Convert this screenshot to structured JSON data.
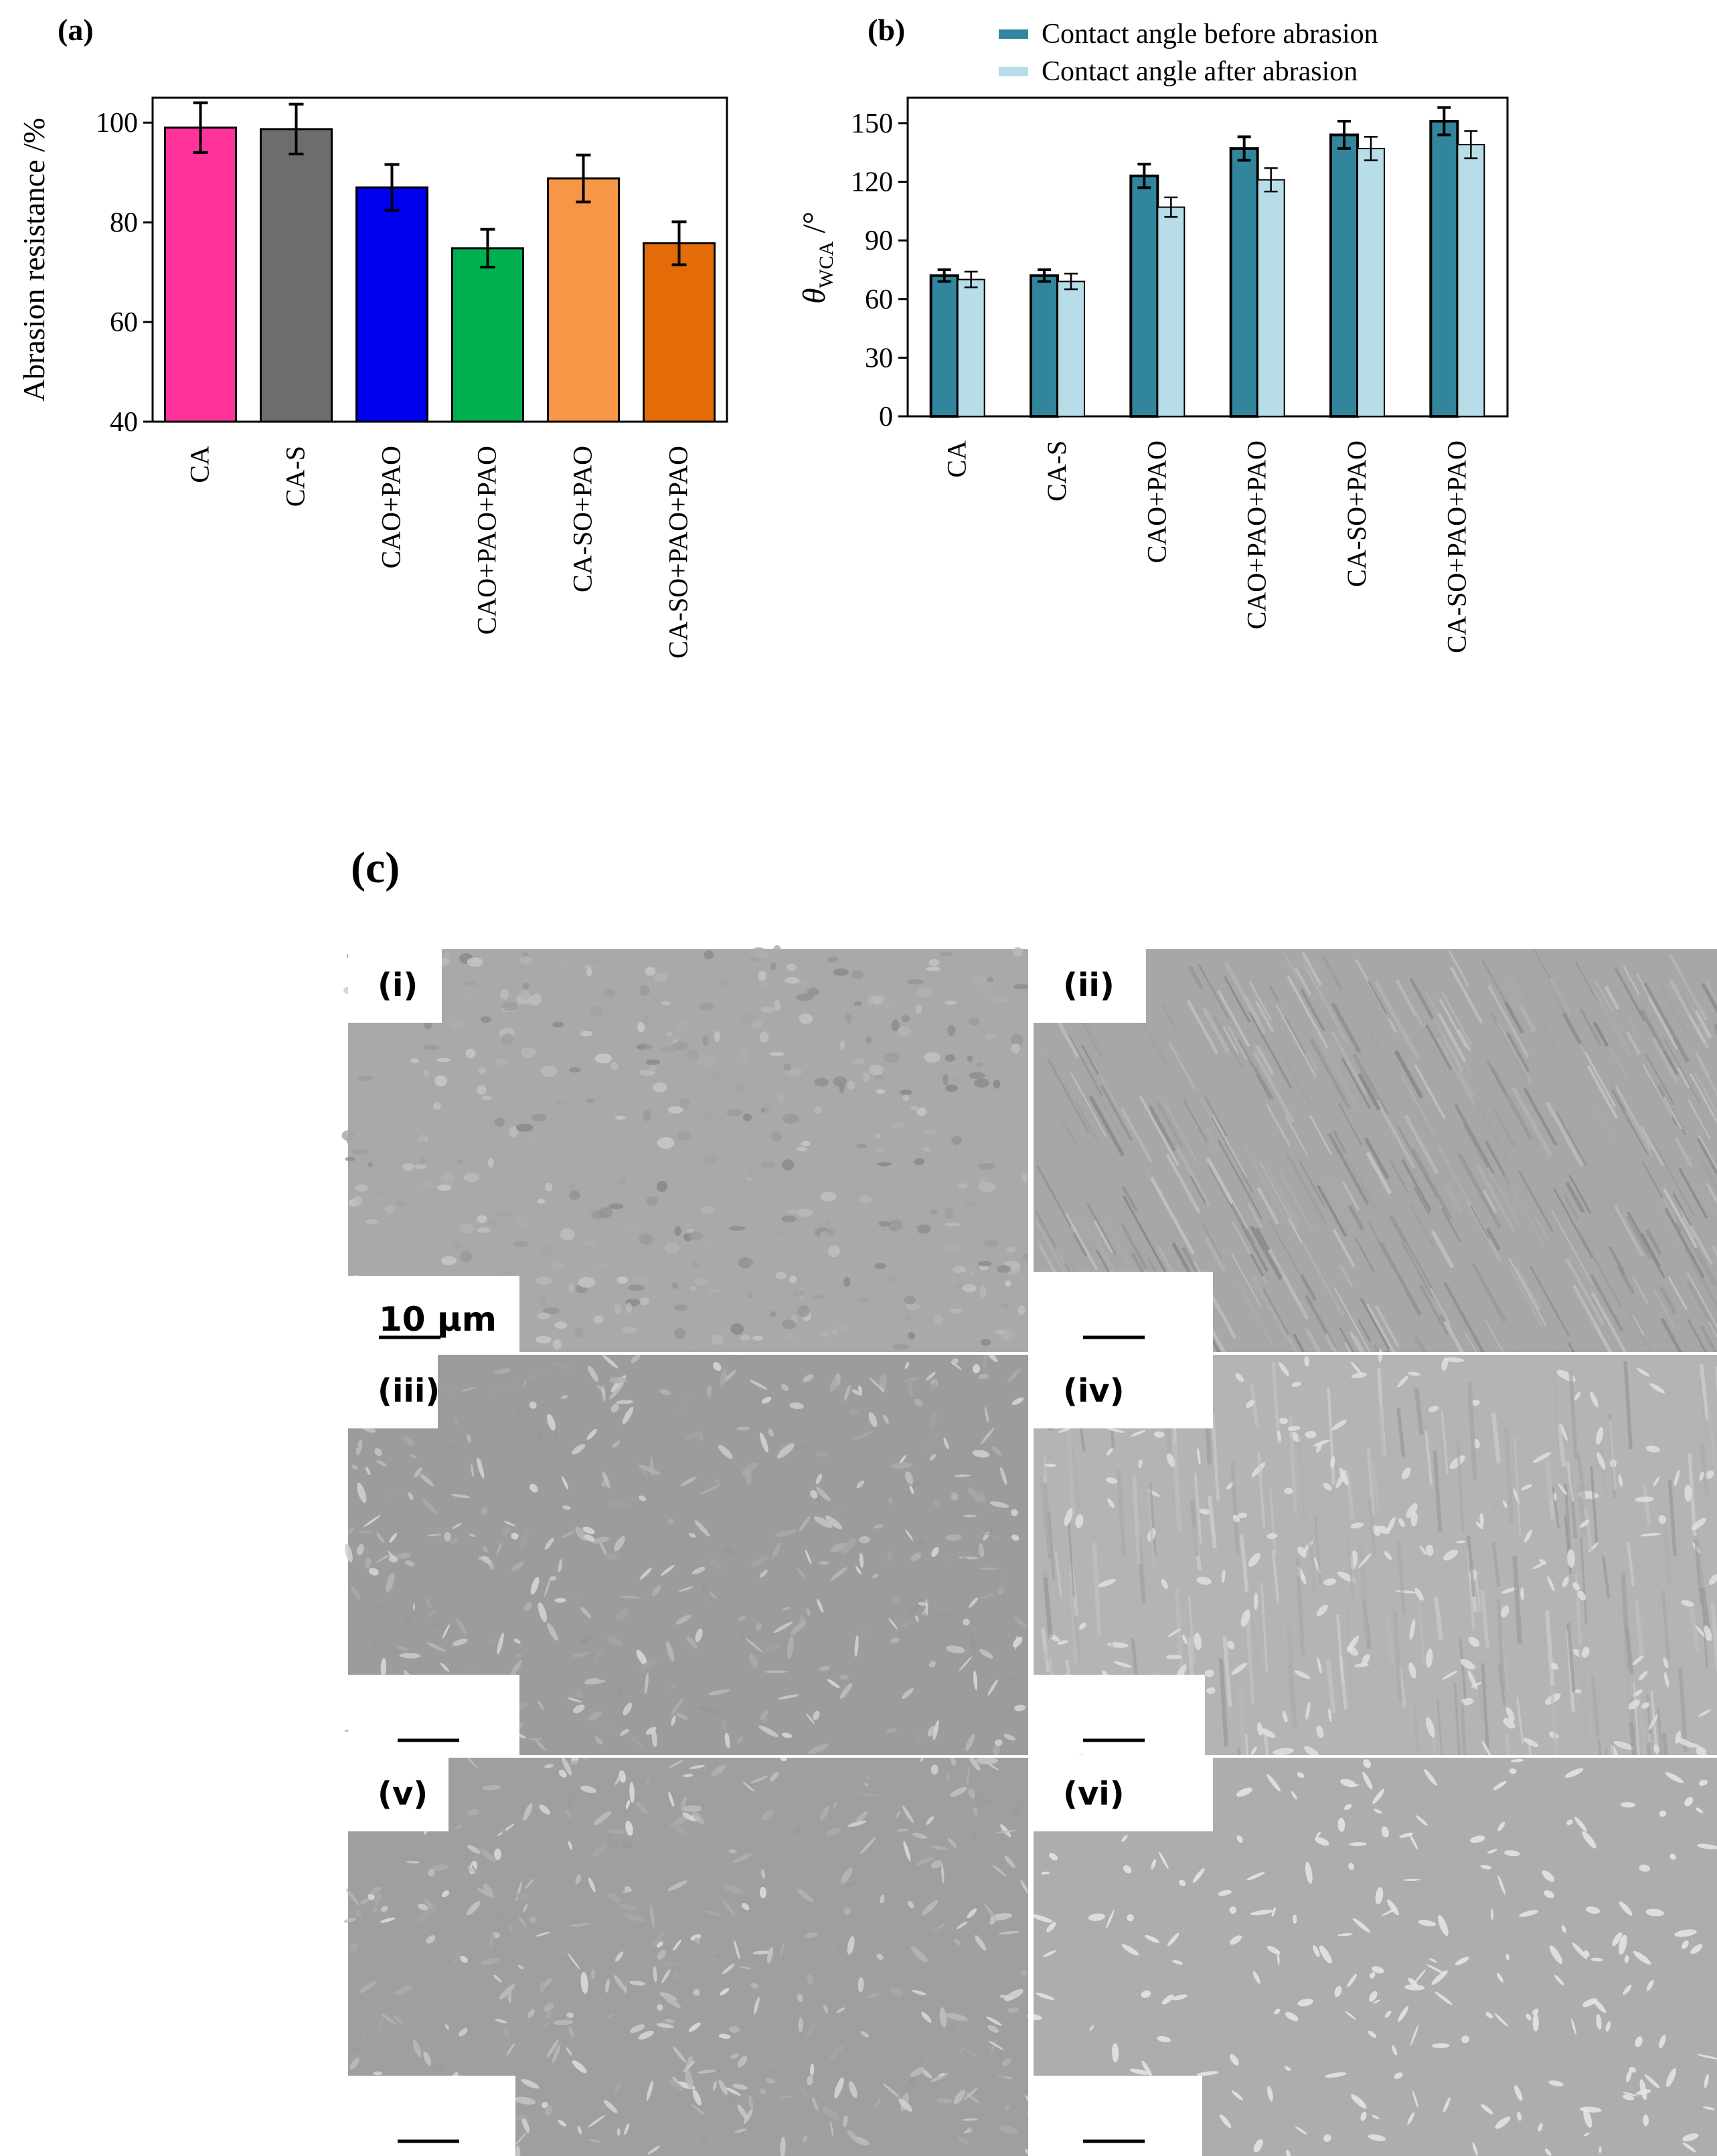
{
  "panel_labels": {
    "a": "(a)",
    "b": "(b)",
    "c": "(c)"
  },
  "chart_data": [
    {
      "type": "bar",
      "panel": "(a)",
      "categories": [
        "CA",
        "CA-S",
        "CAO+PAO",
        "CAO+PAO+PAO",
        "CA-SO+PAO",
        "CA-SO+PAO+PAO"
      ],
      "values": [
        99,
        98.7,
        87,
        74.8,
        88.8,
        75.8
      ],
      "errors": [
        5,
        5,
        4.6,
        3.8,
        4.7,
        4.3
      ],
      "colors": [
        "#ff3399",
        "#6d6d6d",
        "#0000ee",
        "#00b050",
        "#f79646",
        "#e36c09"
      ],
      "ylabel": "Abrasion resistance /%",
      "ylim": [
        40,
        105
      ],
      "yticks": [
        "40",
        "60",
        "80",
        "100"
      ],
      "grid": false
    },
    {
      "type": "bar",
      "panel": "(b)",
      "categories": [
        "CA",
        "CA-S",
        "CAO+PAO",
        "CAO+PAO+PAO",
        "CA-SO+PAO",
        "CA-SO+PAO+PAO"
      ],
      "series": [
        {
          "name": "Contact angle  before abrasion",
          "values": [
            72,
            72,
            123,
            137,
            144,
            151
          ],
          "errors": [
            3,
            3,
            6,
            6,
            7,
            7
          ],
          "color": "#31859c"
        },
        {
          "name": "Contact angle  after abrasion",
          "values": [
            70,
            69,
            107,
            121,
            137,
            139
          ],
          "errors": [
            4,
            4,
            5,
            6,
            6,
            7
          ],
          "color": "#b7dee8"
        }
      ],
      "ylabel_symbol": "θ",
      "ylabel_sub": "WCA",
      "ylabel_unit": " /°",
      "ylim": [
        0,
        150
      ],
      "yticks": [
        "0",
        "30",
        "60",
        "90",
        "120",
        "150"
      ],
      "legend": "top",
      "grid": false
    }
  ],
  "sem_panel": {
    "labels": [
      "(i)",
      "(ii)",
      "(iii)",
      "(iv)",
      "(v)",
      "(vi)"
    ],
    "scale_text": "10 µm",
    "texture": [
      "granular",
      "streaked",
      "flaky",
      "streaked-flakes",
      "flaky-dense",
      "flat-flakes"
    ]
  }
}
